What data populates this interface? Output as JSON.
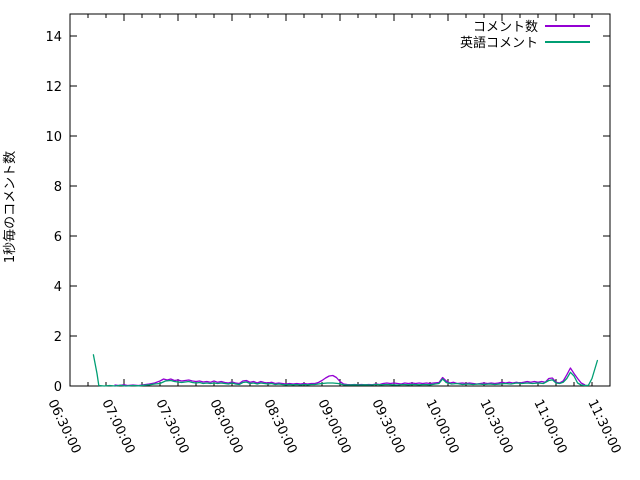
{
  "chart_data": {
    "type": "line",
    "title": "",
    "xlabel": "",
    "ylabel": "1秒毎のコメント数",
    "ylim": [
      0,
      14.88
    ],
    "y_ticks": [
      0,
      2,
      4,
      6,
      8,
      10,
      12,
      14
    ],
    "x_range_minutes": [
      0,
      300
    ],
    "x_tick_interval_minutes": 30,
    "x_minor_tick_interval_minutes": 10,
    "x_tick_labels": [
      "06:30:00",
      "07:00:00",
      "07:30:00",
      "08:00:00",
      "08:30:00",
      "09:00:00",
      "09:30:00",
      "10:00:00",
      "10:30:00",
      "11:00:00",
      "11:30:00"
    ],
    "grid": false,
    "legend_position": "top-right-inside",
    "series": [
      {
        "name": "コメント数",
        "color": "#9400d3",
        "points": [
          [
            25,
            0.04
          ],
          [
            27,
            0.02
          ],
          [
            30,
            0.05
          ],
          [
            32,
            0.02
          ],
          [
            35,
            0.04
          ],
          [
            38,
            0.02
          ],
          [
            41,
            0.05
          ],
          [
            44,
            0.08
          ],
          [
            47,
            0.12
          ],
          [
            50,
            0.2
          ],
          [
            52,
            0.28
          ],
          [
            54,
            0.24
          ],
          [
            56,
            0.28
          ],
          [
            58,
            0.22
          ],
          [
            60,
            0.24
          ],
          [
            62,
            0.2
          ],
          [
            64,
            0.22
          ],
          [
            66,
            0.24
          ],
          [
            68,
            0.2
          ],
          [
            70,
            0.18
          ],
          [
            72,
            0.2
          ],
          [
            74,
            0.16
          ],
          [
            76,
            0.18
          ],
          [
            78,
            0.15
          ],
          [
            80,
            0.2
          ],
          [
            82,
            0.15
          ],
          [
            84,
            0.18
          ],
          [
            86,
            0.14
          ],
          [
            88,
            0.12
          ],
          [
            90,
            0.16
          ],
          [
            92,
            0.12
          ],
          [
            94,
            0.1
          ],
          [
            96,
            0.2
          ],
          [
            98,
            0.22
          ],
          [
            100,
            0.15
          ],
          [
            102,
            0.18
          ],
          [
            104,
            0.12
          ],
          [
            106,
            0.18
          ],
          [
            108,
            0.14
          ],
          [
            110,
            0.12
          ],
          [
            112,
            0.15
          ],
          [
            114,
            0.1
          ],
          [
            116,
            0.12
          ],
          [
            118,
            0.1
          ],
          [
            120,
            0.08
          ],
          [
            122,
            0.1
          ],
          [
            124,
            0.08
          ],
          [
            126,
            0.1
          ],
          [
            128,
            0.08
          ],
          [
            130,
            0.1
          ],
          [
            132,
            0.08
          ],
          [
            134,
            0.1
          ],
          [
            136,
            0.1
          ],
          [
            138,
            0.14
          ],
          [
            140,
            0.22
          ],
          [
            142,
            0.32
          ],
          [
            144,
            0.4
          ],
          [
            146,
            0.42
          ],
          [
            148,
            0.34
          ],
          [
            150,
            0.18
          ],
          [
            152,
            0.08
          ],
          [
            154,
            0.06
          ],
          [
            156,
            0.05
          ],
          [
            158,
            0.06
          ],
          [
            160,
            0.05
          ],
          [
            162,
            0.06
          ],
          [
            164,
            0.05
          ],
          [
            166,
            0.06
          ],
          [
            168,
            0.05
          ],
          [
            170,
            0.08
          ],
          [
            172,
            0.06
          ],
          [
            174,
            0.1
          ],
          [
            176,
            0.12
          ],
          [
            178,
            0.1
          ],
          [
            180,
            0.12
          ],
          [
            182,
            0.1
          ],
          [
            184,
            0.08
          ],
          [
            186,
            0.12
          ],
          [
            188,
            0.1
          ],
          [
            190,
            0.12
          ],
          [
            192,
            0.1
          ],
          [
            194,
            0.12
          ],
          [
            196,
            0.1
          ],
          [
            198,
            0.12
          ],
          [
            200,
            0.1
          ],
          [
            202,
            0.12
          ],
          [
            205,
            0.14
          ],
          [
            207,
            0.34
          ],
          [
            209,
            0.2
          ],
          [
            211,
            0.12
          ],
          [
            213,
            0.15
          ],
          [
            215,
            0.1
          ],
          [
            218,
            0.12
          ],
          [
            220,
            0.1
          ],
          [
            222,
            0.12
          ],
          [
            224,
            0.1
          ],
          [
            226,
            0.08
          ],
          [
            228,
            0.1
          ],
          [
            230,
            0.12
          ],
          [
            232,
            0.1
          ],
          [
            234,
            0.12
          ],
          [
            236,
            0.1
          ],
          [
            238,
            0.12
          ],
          [
            240,
            0.15
          ],
          [
            242,
            0.12
          ],
          [
            244,
            0.15
          ],
          [
            246,
            0.12
          ],
          [
            248,
            0.15
          ],
          [
            250,
            0.12
          ],
          [
            252,
            0.15
          ],
          [
            254,
            0.18
          ],
          [
            256,
            0.15
          ],
          [
            258,
            0.18
          ],
          [
            260,
            0.15
          ],
          [
            262,
            0.18
          ],
          [
            264,
            0.15
          ],
          [
            266,
            0.3
          ],
          [
            268,
            0.32
          ],
          [
            270,
            0.15
          ],
          [
            272,
            0.12
          ],
          [
            274,
            0.2
          ],
          [
            276,
            0.45
          ],
          [
            278,
            0.72
          ],
          [
            280,
            0.5
          ],
          [
            282,
            0.3
          ],
          [
            284,
            0.12
          ],
          [
            286,
            0.05
          ]
        ]
      },
      {
        "name": "英語コメント",
        "color": "#009e73",
        "points": [
          [
            13,
            1.25
          ],
          [
            15,
            0.5
          ],
          [
            16,
            0.02
          ],
          [
            19,
            0
          ],
          [
            22,
            0.02
          ],
          [
            25,
            0
          ],
          [
            28,
            0.03
          ],
          [
            31,
            0
          ],
          [
            35,
            0.02
          ],
          [
            38,
            0.01
          ],
          [
            41,
            0.03
          ],
          [
            44,
            0.05
          ],
          [
            47,
            0.08
          ],
          [
            50,
            0.1
          ],
          [
            53,
            0.2
          ],
          [
            56,
            0.22
          ],
          [
            58,
            0.18
          ],
          [
            60,
            0.16
          ],
          [
            62,
            0.14
          ],
          [
            64,
            0.16
          ],
          [
            66,
            0.18
          ],
          [
            68,
            0.14
          ],
          [
            70,
            0.12
          ],
          [
            72,
            0.14
          ],
          [
            74,
            0.1
          ],
          [
            76,
            0.12
          ],
          [
            78,
            0.1
          ],
          [
            80,
            0.12
          ],
          [
            82,
            0.1
          ],
          [
            84,
            0.12
          ],
          [
            86,
            0.1
          ],
          [
            88,
            0.08
          ],
          [
            90,
            0.12
          ],
          [
            92,
            0.08
          ],
          [
            94,
            0.06
          ],
          [
            96,
            0.14
          ],
          [
            98,
            0.16
          ],
          [
            100,
            0.1
          ],
          [
            102,
            0.12
          ],
          [
            104,
            0.08
          ],
          [
            106,
            0.12
          ],
          [
            108,
            0.1
          ],
          [
            110,
            0.08
          ],
          [
            112,
            0.1
          ],
          [
            114,
            0.06
          ],
          [
            116,
            0.08
          ],
          [
            118,
            0.06
          ],
          [
            120,
            0.05
          ],
          [
            122,
            0.06
          ],
          [
            124,
            0.05
          ],
          [
            126,
            0.06
          ],
          [
            128,
            0.04
          ],
          [
            130,
            0.06
          ],
          [
            132,
            0.05
          ],
          [
            134,
            0.06
          ],
          [
            136,
            0.06
          ],
          [
            138,
            0.08
          ],
          [
            140,
            0.1
          ],
          [
            143,
            0.12
          ],
          [
            146,
            0.12
          ],
          [
            149,
            0.1
          ],
          [
            152,
            0.05
          ],
          [
            155,
            0.04
          ],
          [
            158,
            0.05
          ],
          [
            161,
            0.04
          ],
          [
            164,
            0.05
          ],
          [
            167,
            0.04
          ],
          [
            170,
            0.06
          ],
          [
            173,
            0.05
          ],
          [
            176,
            0.06
          ],
          [
            179,
            0.05
          ],
          [
            182,
            0.04
          ],
          [
            185,
            0.06
          ],
          [
            188,
            0.05
          ],
          [
            191,
            0.06
          ],
          [
            194,
            0.05
          ],
          [
            197,
            0.06
          ],
          [
            200,
            0.05
          ],
          [
            203,
            0.08
          ],
          [
            205,
            0.1
          ],
          [
            207,
            0.28
          ],
          [
            209,
            0.14
          ],
          [
            212,
            0.08
          ],
          [
            215,
            0.1
          ],
          [
            218,
            0.06
          ],
          [
            221,
            0.08
          ],
          [
            224,
            0.06
          ],
          [
            227,
            0.08
          ],
          [
            230,
            0.06
          ],
          [
            233,
            0.08
          ],
          [
            236,
            0.06
          ],
          [
            239,
            0.08
          ],
          [
            242,
            0.1
          ],
          [
            245,
            0.08
          ],
          [
            248,
            0.12
          ],
          [
            251,
            0.1
          ],
          [
            254,
            0.12
          ],
          [
            257,
            0.1
          ],
          [
            260,
            0.12
          ],
          [
            263,
            0.1
          ],
          [
            266,
            0.22
          ],
          [
            268,
            0.25
          ],
          [
            270,
            0.12
          ],
          [
            272,
            0.1
          ],
          [
            274,
            0.15
          ],
          [
            276,
            0.3
          ],
          [
            278,
            0.55
          ],
          [
            280,
            0.4
          ],
          [
            282,
            0.12
          ],
          [
            284,
            0.04
          ],
          [
            286,
            0.02
          ],
          [
            288,
            0.03
          ],
          [
            290,
            0.3
          ],
          [
            293,
            1.02
          ]
        ]
      }
    ]
  }
}
